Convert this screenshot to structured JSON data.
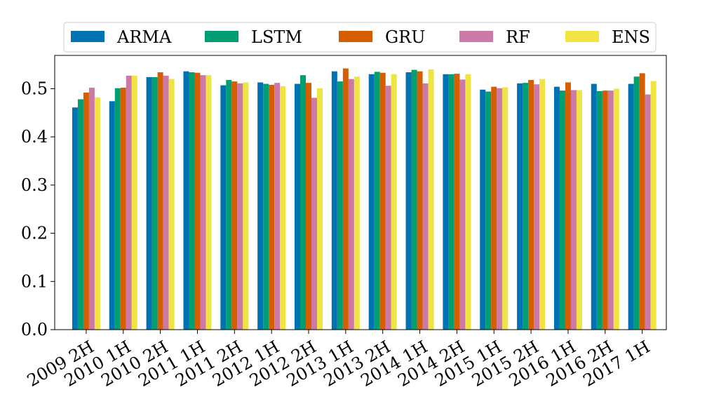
{
  "chart_data": {
    "type": "bar",
    "categories": [
      "2009 2H",
      "2010 1H",
      "2010 2H",
      "2011 1H",
      "2011 2H",
      "2012 1H",
      "2012 2H",
      "2013 1H",
      "2013 2H",
      "2014 1H",
      "2014 2H",
      "2015 1H",
      "2015 2H",
      "2016 1H",
      "2016 2H",
      "2017 1H"
    ],
    "series": [
      {
        "name": "ARMA",
        "color": "#0072b2",
        "values": [
          0.461,
          0.474,
          0.524,
          0.536,
          0.507,
          0.513,
          0.51,
          0.536,
          0.53,
          0.534,
          0.53,
          0.498,
          0.511,
          0.504,
          0.51,
          0.51
        ]
      },
      {
        "name": "LSTM",
        "color": "#009e73",
        "values": [
          0.478,
          0.501,
          0.524,
          0.534,
          0.518,
          0.51,
          0.528,
          0.515,
          0.535,
          0.539,
          0.53,
          0.494,
          0.512,
          0.496,
          0.495,
          0.525
        ]
      },
      {
        "name": "GRU",
        "color": "#d55e00",
        "values": [
          0.492,
          0.502,
          0.534,
          0.533,
          0.515,
          0.508,
          0.512,
          0.542,
          0.533,
          0.536,
          0.531,
          0.504,
          0.518,
          0.513,
          0.496,
          0.532
        ]
      },
      {
        "name": "RF",
        "color": "#cc79a7",
        "values": [
          0.502,
          0.527,
          0.527,
          0.528,
          0.511,
          0.512,
          0.481,
          0.52,
          0.506,
          0.511,
          0.519,
          0.501,
          0.509,
          0.497,
          0.496,
          0.488
        ]
      },
      {
        "name": "ENS",
        "color": "#f0e442",
        "values": [
          0.482,
          0.527,
          0.52,
          0.528,
          0.513,
          0.505,
          0.501,
          0.525,
          0.53,
          0.54,
          0.53,
          0.503,
          0.52,
          0.497,
          0.5,
          0.516
        ]
      }
    ],
    "yticks": [
      "0.0",
      "0.1",
      "0.2",
      "0.3",
      "0.4",
      "0.5"
    ],
    "ylim": [
      0,
      0.569
    ],
    "grid": false,
    "legend_placement": "top-center"
  }
}
